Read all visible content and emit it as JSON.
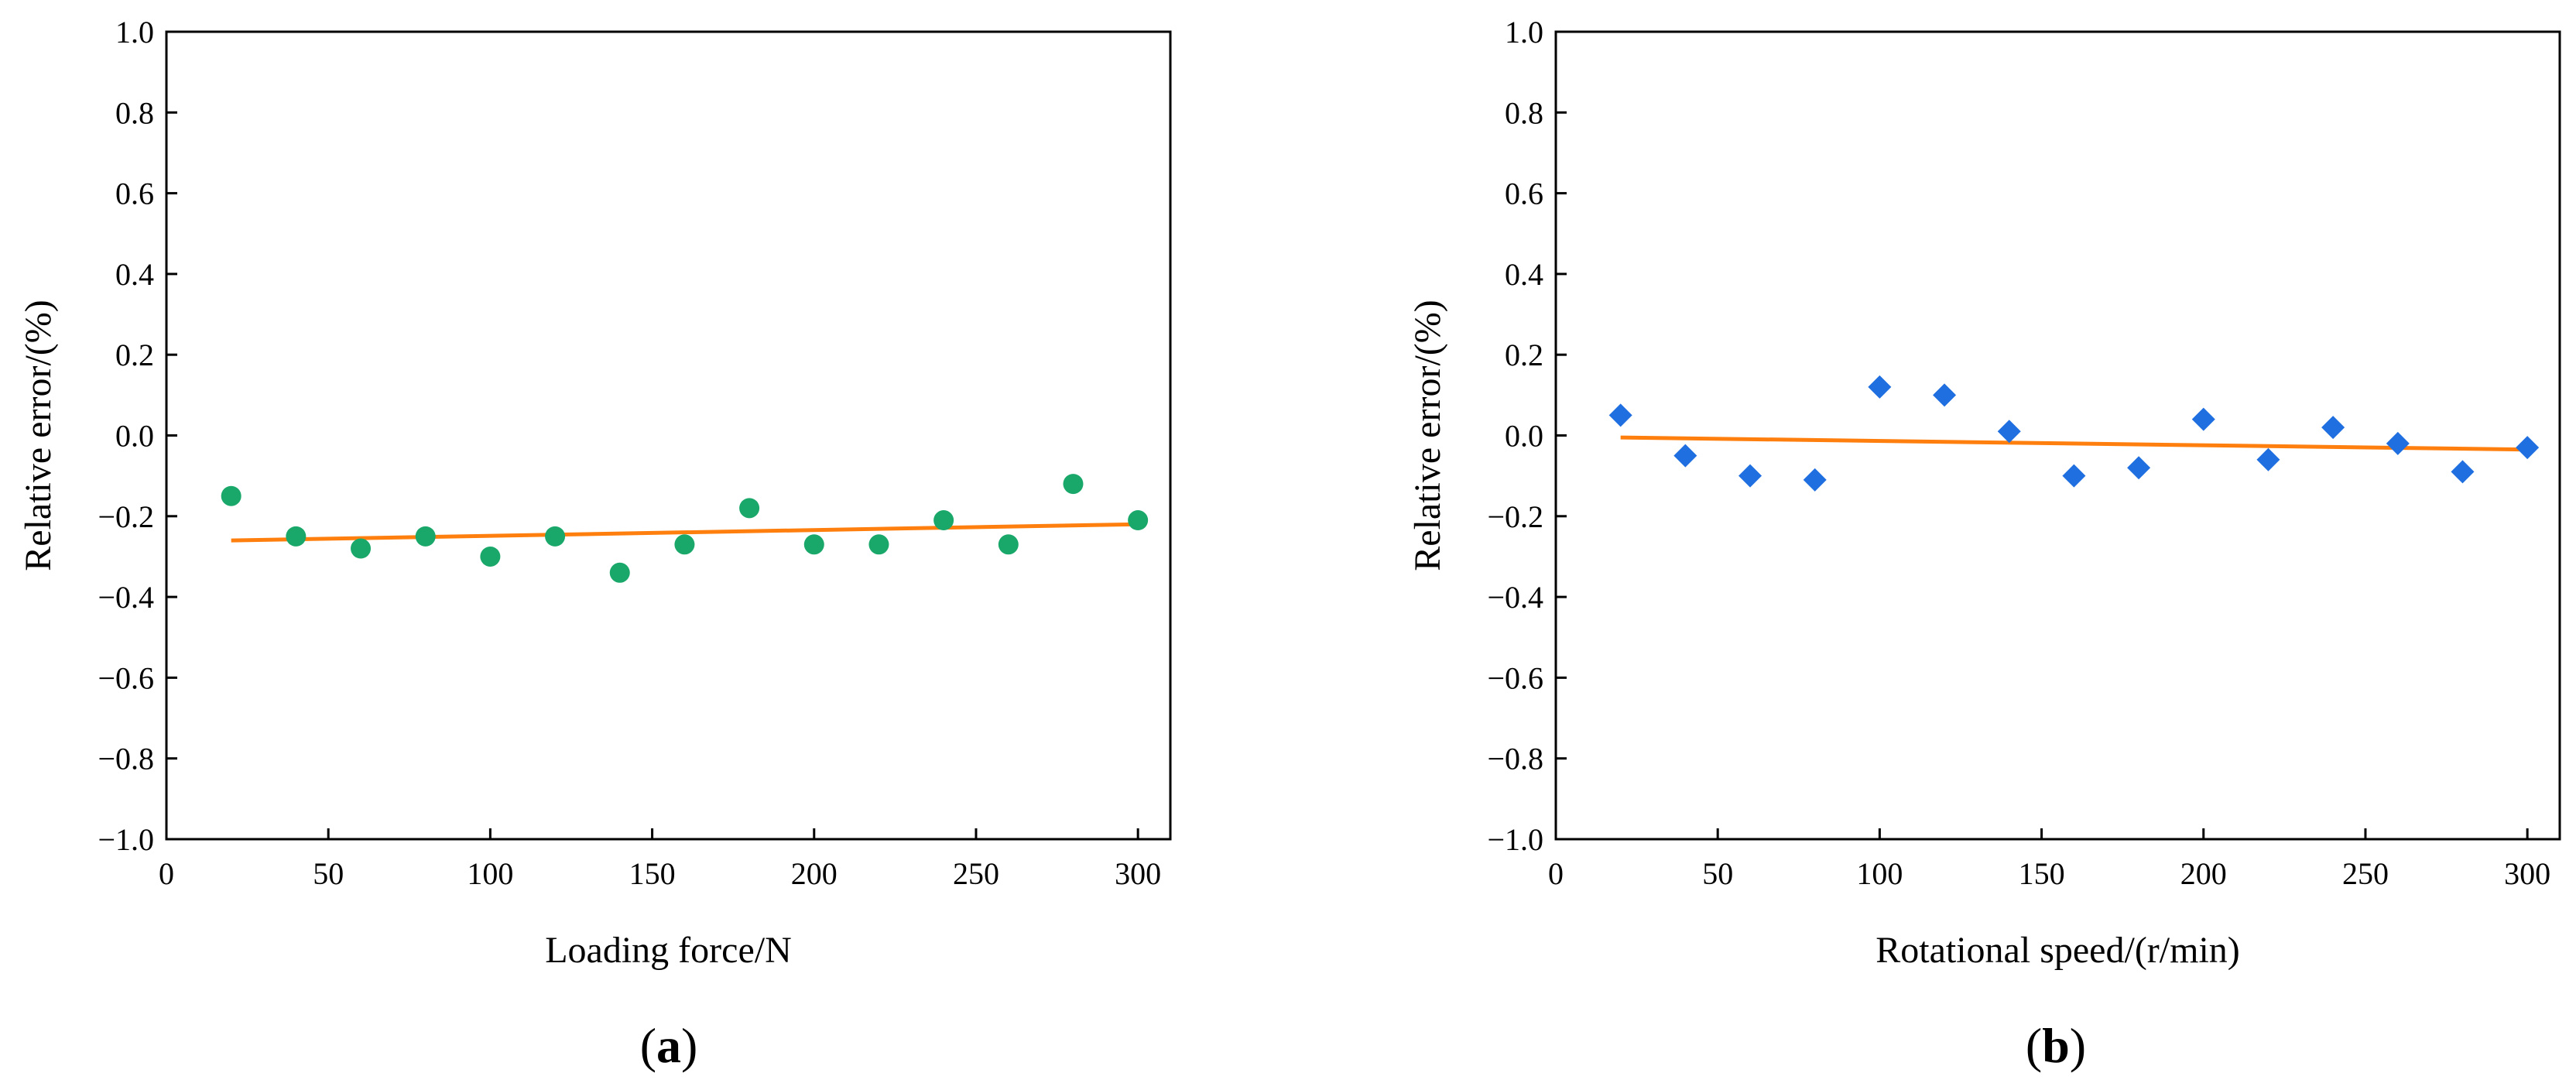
{
  "colors": {
    "scatter_a": "#1aa86a",
    "scatter_b": "#1f6fe0",
    "fit_line": "#ff7f0e",
    "axis": "#000000"
  },
  "chart_data": [
    {
      "type": "scatter",
      "panel": "a",
      "panel_label": {
        "open": "(",
        "letter": "a",
        "close": ")"
      },
      "xlabel": "Loading force/N",
      "ylabel": "Relative error/(%)",
      "xlim": [
        0,
        310
      ],
      "ylim": [
        -1.0,
        1.0
      ],
      "xticks": [
        0,
        50,
        100,
        150,
        200,
        250,
        300
      ],
      "xtick_labels": [
        "0",
        "50",
        "100",
        "150",
        "200",
        "250",
        "300"
      ],
      "yticks": [
        1.0,
        0.8,
        0.6,
        0.4,
        0.2,
        0.0,
        -0.2,
        -0.4,
        -0.6,
        -0.8,
        -1.0
      ],
      "ytick_labels": [
        "1.0",
        "0.8",
        "0.6",
        "0.4",
        "0.2",
        "0.0",
        "−0.2",
        "−0.4",
        "−0.6",
        "−0.8",
        "−1.0"
      ],
      "marker": "circle",
      "series": [
        {
          "name": "Relative error",
          "x": [
            20,
            40,
            60,
            80,
            100,
            120,
            140,
            160,
            180,
            200,
            220,
            240,
            260,
            280,
            300
          ],
          "y": [
            -0.15,
            -0.25,
            -0.28,
            -0.25,
            -0.3,
            -0.25,
            -0.34,
            -0.27,
            -0.18,
            -0.27,
            -0.27,
            -0.21,
            -0.27,
            -0.12,
            -0.21
          ]
        }
      ],
      "fit_line": {
        "x": [
          20,
          300
        ],
        "y": [
          -0.26,
          -0.22
        ]
      }
    },
    {
      "type": "scatter",
      "panel": "b",
      "panel_label": {
        "open": "(",
        "letter": "b",
        "close": ")"
      },
      "xlabel": "Rotational speed/(r/min)",
      "ylabel": "Relative error/(%)",
      "xlim": [
        0,
        310
      ],
      "ylim": [
        -1.0,
        1.0
      ],
      "xticks": [
        0,
        50,
        100,
        150,
        200,
        250,
        300
      ],
      "xtick_labels": [
        "0",
        "50",
        "100",
        "150",
        "200",
        "250",
        "300"
      ],
      "yticks": [
        1.0,
        0.8,
        0.6,
        0.4,
        0.2,
        0.0,
        -0.2,
        -0.4,
        -0.6,
        -0.8,
        -1.0
      ],
      "ytick_labels": [
        "1.0",
        "0.8",
        "0.6",
        "0.4",
        "0.2",
        "0.0",
        "−0.2",
        "−0.4",
        "−0.6",
        "−0.8",
        "−1.0"
      ],
      "marker": "diamond",
      "series": [
        {
          "name": "Relative error",
          "x": [
            20,
            40,
            60,
            80,
            100,
            120,
            140,
            160,
            180,
            200,
            220,
            240,
            260,
            280,
            300
          ],
          "y": [
            0.05,
            -0.05,
            -0.1,
            -0.11,
            0.12,
            0.1,
            0.01,
            -0.1,
            -0.08,
            0.04,
            -0.06,
            0.02,
            -0.02,
            -0.09,
            -0.03
          ]
        }
      ],
      "fit_line": {
        "x": [
          20,
          300
        ],
        "y": [
          -0.005,
          -0.035
        ]
      }
    }
  ]
}
